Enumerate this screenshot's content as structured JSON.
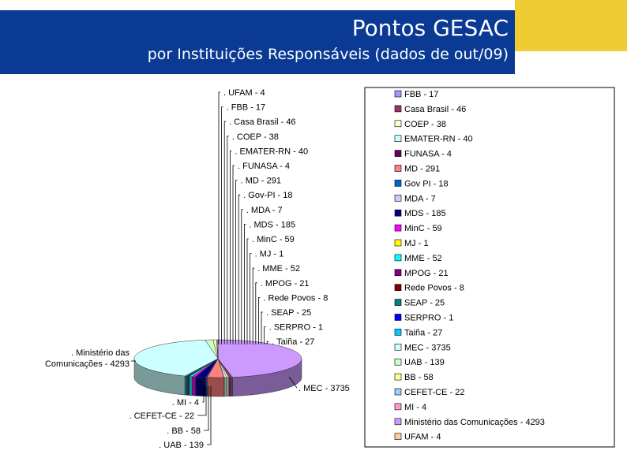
{
  "header": {
    "title": "Pontos GESAC",
    "subtitle": "por Instituições Responsáveis (dados de out/09)",
    "bg_color": "#0a3a93",
    "accent_color": "#f0cc33"
  },
  "chart_data": {
    "type": "pie",
    "title": "Pontos GESAC",
    "subtitle": "por Instituições Responsáveis (dados de out/09)",
    "legend_position": "right",
    "categories": [
      "FBB",
      "Casa Brasil",
      "COEP",
      "EMATER-RN",
      "FUNASA",
      "MD",
      "Gov PI",
      "MDA",
      "MDS",
      "MinC",
      "MJ",
      "MME",
      "MPOG",
      "Rede Povos",
      "SEAP",
      "SERPRO",
      "Taiña",
      "MEC",
      "UAB",
      "BB",
      "CEFET-CE",
      "MI",
      "Ministério das Comunicações",
      "UFAM"
    ],
    "values": [
      17,
      46,
      38,
      40,
      4,
      291,
      18,
      7,
      185,
      59,
      1,
      52,
      21,
      8,
      25,
      1,
      27,
      3735,
      139,
      58,
      22,
      4,
      4293,
      4
    ],
    "colors": [
      "#9999ff",
      "#993366",
      "#ffffcc",
      "#ccffff",
      "#660066",
      "#ff8080",
      "#0066cc",
      "#ccccff",
      "#000080",
      "#ff00ff",
      "#ffff00",
      "#00ffff",
      "#800080",
      "#800000",
      "#008080",
      "#0000ff",
      "#00ccff",
      "#ccffff",
      "#ccffcc",
      "#ffff99",
      "#99ccff",
      "#ff99cc",
      "#cc99ff",
      "#ffcc99"
    ],
    "legend_labels": [
      "FBB - 17",
      "Casa Brasil - 46",
      "COEP - 38",
      "EMATER-RN - 40",
      "FUNASA - 4",
      "MD - 291",
      "Gov PI - 18",
      "MDA - 7",
      "MDS - 185",
      "MinC - 59",
      "MJ - 1",
      "MME - 52",
      "MPOG - 21",
      "Rede Povos - 8",
      "SEAP - 25",
      "SERPRO - 1",
      "Taiña - 27",
      "MEC - 3735",
      "UAB - 139",
      "BB - 58",
      "CEFET-CE - 22",
      "MI - 4",
      "Ministério das Comunicações - 4293",
      "UFAM - 4"
    ],
    "callouts_top": [
      "UFAM - 4",
      "FBB - 17",
      "Casa Brasil - 46",
      "COEP - 38",
      "EMATER-RN - 40",
      "FUNASA - 4",
      "MD - 291",
      "Gov-PI - 18",
      "MDA - 7",
      "MDS - 185",
      "MinC - 59",
      "MJ - 1",
      "MME - 52",
      "MPOG - 21",
      "Rede Povos - 8",
      "SEAP - 25",
      "SERPRO - 1",
      "Taiña - 27"
    ],
    "callout_mec": "MEC - 3735",
    "callout_minicom": [
      "Ministério das",
      "Comunicações - 4293"
    ],
    "callouts_bottom": [
      "MI - 4",
      "CEFET-CE - 22",
      "BB - 58",
      "UAB - 139"
    ]
  }
}
